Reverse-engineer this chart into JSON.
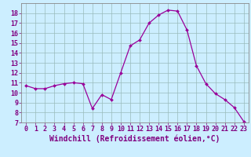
{
  "x": [
    0,
    1,
    2,
    3,
    4,
    5,
    6,
    7,
    8,
    9,
    10,
    11,
    12,
    13,
    14,
    15,
    16,
    17,
    18,
    19,
    20,
    21,
    22,
    23
  ],
  "y": [
    10.7,
    10.4,
    10.4,
    10.7,
    10.9,
    11.0,
    10.9,
    8.4,
    9.8,
    9.3,
    12.0,
    14.7,
    15.3,
    17.0,
    17.8,
    18.3,
    18.2,
    16.3,
    12.7,
    10.9,
    9.9,
    9.3,
    8.5,
    7.1
  ],
  "line_color": "#990099",
  "marker_color": "#990099",
  "bg_color": "#cceeff",
  "grid_color": "#99bbbb",
  "xlabel": "Windchill (Refroidissement éolien,°C)",
  "xlim": [
    -0.5,
    23.5
  ],
  "ylim": [
    7,
    19
  ],
  "yticks": [
    7,
    8,
    9,
    10,
    11,
    12,
    13,
    14,
    15,
    16,
    17,
    18
  ],
  "xticks": [
    0,
    1,
    2,
    3,
    4,
    5,
    6,
    7,
    8,
    9,
    10,
    11,
    12,
    13,
    14,
    15,
    16,
    17,
    18,
    19,
    20,
    21,
    22,
    23
  ],
  "xlabel_color": "#800080",
  "tick_color": "#800080",
  "axis_color": "#800080",
  "xlabel_fontsize": 7,
  "tick_fontsize": 6,
  "spine_color": "#888888"
}
